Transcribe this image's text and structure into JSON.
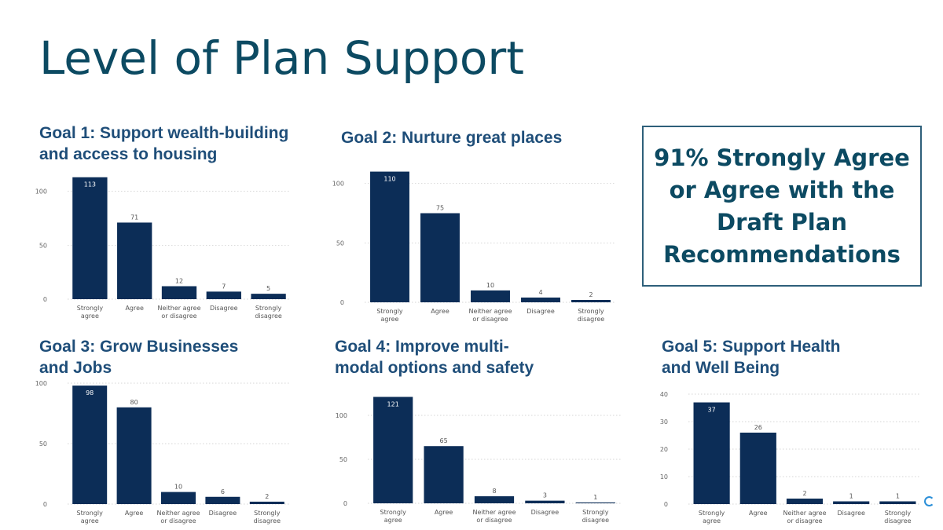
{
  "page": {
    "title": "Level of Plan Support"
  },
  "callout": {
    "text": "91% Strongly Agree or Agree with the Draft Plan Recommendations"
  },
  "goals": [
    {
      "title_lines": [
        "Goal 1: Support wealth-building",
        "and access to housing"
      ]
    },
    {
      "title_lines": [
        "Goal 2: Nurture great places"
      ]
    },
    {
      "title_lines": [
        "Goal 3: Grow Businesses",
        "and Jobs"
      ]
    },
    {
      "title_lines": [
        "Goal 4: Improve multi-",
        "modal options and safety"
      ]
    },
    {
      "title_lines": [
        "Goal 5: Support Health",
        "and Well Being"
      ]
    }
  ],
  "chart_data": [
    {
      "type": "bar",
      "categories": [
        "Strongly agree",
        "Agree",
        "Neither agree or disagree",
        "Disagree",
        "Strongly disagree"
      ],
      "values": [
        113,
        71,
        12,
        7,
        5
      ],
      "ylim": [
        0,
        115
      ],
      "yticks": [
        0,
        50,
        100
      ],
      "color": "#0c2d57",
      "grid": true
    },
    {
      "type": "bar",
      "categories": [
        "Strongly agree",
        "Agree",
        "Neither agree or disagree",
        "Disagree",
        "Strongly disagree"
      ],
      "values": [
        110,
        75,
        10,
        4,
        2
      ],
      "ylim": [
        0,
        115
      ],
      "yticks": [
        0,
        50,
        100
      ],
      "color": "#0c2d57",
      "grid": true
    },
    {
      "type": "bar",
      "categories": [
        "Strongly agree",
        "Agree",
        "Neither agree or disagree",
        "Disagree",
        "Strongly disagree"
      ],
      "values": [
        98,
        80,
        10,
        6,
        2
      ],
      "ylim": [
        0,
        100
      ],
      "yticks": [
        0,
        50,
        100
      ],
      "color": "#0c2d57",
      "grid": true
    },
    {
      "type": "bar",
      "categories": [
        "Strongly agree",
        "Agree",
        "Neither agree or disagree",
        "Disagree",
        "Strongly disagree"
      ],
      "values": [
        121,
        65,
        8,
        3,
        1
      ],
      "ylim": [
        0,
        125
      ],
      "yticks": [
        0,
        50,
        100
      ],
      "color": "#0c2d57",
      "grid": true
    },
    {
      "type": "bar",
      "categories": [
        "Strongly agree",
        "Agree",
        "Neither agree or disagree",
        "Disagree",
        "Strongly disagree"
      ],
      "values": [
        37,
        26,
        2,
        1,
        1
      ],
      "ylim": [
        0,
        40
      ],
      "yticks": [
        0,
        10,
        20,
        30,
        40
      ],
      "color": "#0c2d57",
      "grid": true
    }
  ]
}
